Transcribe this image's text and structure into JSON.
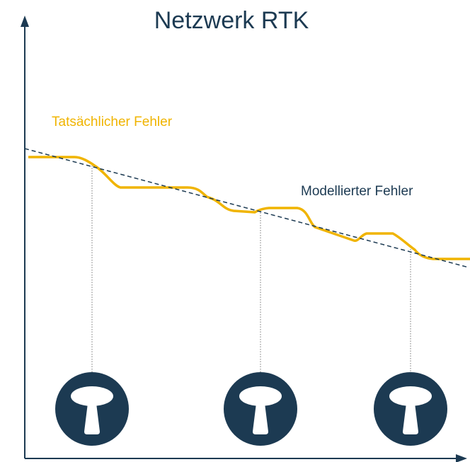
{
  "title": "Netzwerk RTK",
  "labels": {
    "actual": "Tatsächlicher Fehler",
    "modeled": "Modellierter Fehler"
  }
}
